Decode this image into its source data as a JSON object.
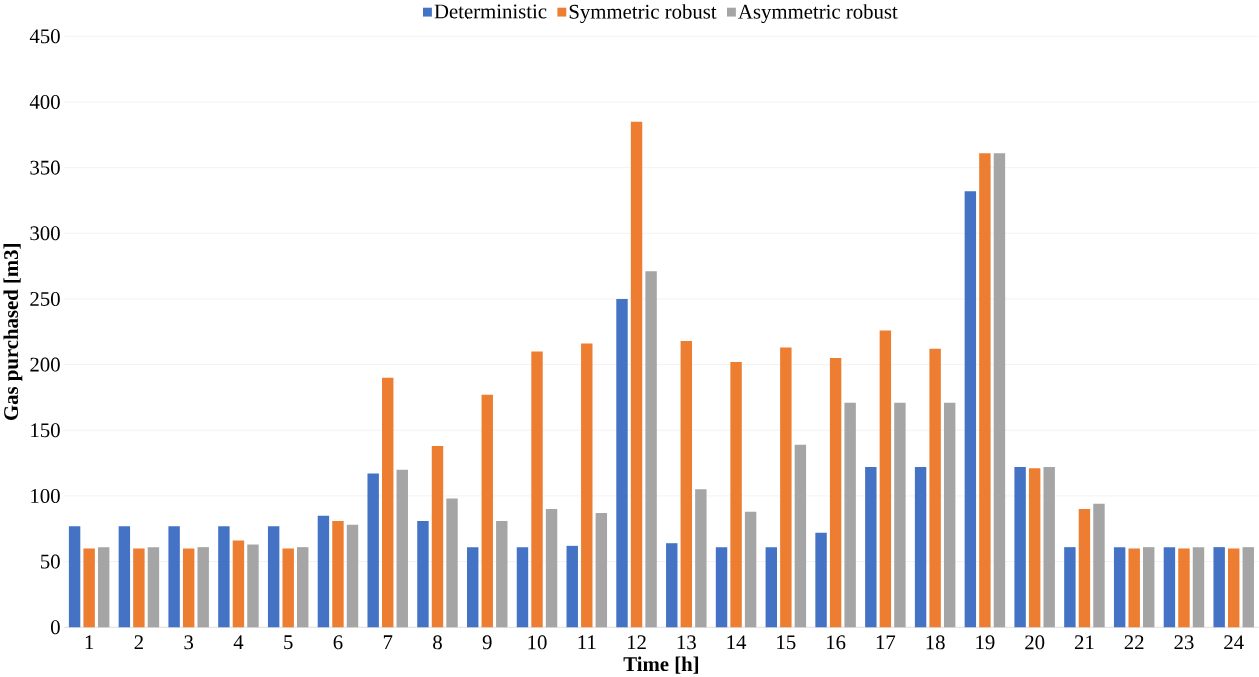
{
  "chart_data": {
    "type": "bar",
    "xlabel": "Time [h]",
    "ylabel": "Gas purchased [m3]",
    "categories": [
      "1",
      "2",
      "3",
      "4",
      "5",
      "6",
      "7",
      "8",
      "9",
      "10",
      "11",
      "12",
      "13",
      "14",
      "15",
      "16",
      "17",
      "18",
      "19",
      "20",
      "21",
      "22",
      "23",
      "24"
    ],
    "series": [
      {
        "name": "Deterministic",
        "color": "#4472c4",
        "values": [
          77,
          77,
          77,
          77,
          77,
          85,
          117,
          81,
          61,
          61,
          62,
          250,
          64,
          61,
          61,
          72,
          122,
          122,
          332,
          122,
          61,
          61,
          61,
          61
        ]
      },
      {
        "name": "Symmetric robust",
        "color": "#ed7d31",
        "values": [
          60,
          60,
          60,
          66,
          60,
          81,
          190,
          138,
          177,
          210,
          216,
          385,
          218,
          202,
          213,
          205,
          226,
          212,
          361,
          121,
          90,
          60,
          60,
          60
        ]
      },
      {
        "name": "Asymmetric robust",
        "color": "#a5a5a5",
        "values": [
          61,
          61,
          61,
          63,
          61,
          78,
          120,
          98,
          81,
          90,
          87,
          271,
          105,
          88,
          139,
          171,
          171,
          171,
          361,
          122,
          94,
          61,
          61,
          61
        ]
      }
    ],
    "ylim": [
      0,
      450
    ],
    "yticks": [
      0,
      50,
      100,
      150,
      200,
      250,
      300,
      350,
      400,
      450
    ],
    "grid": "y",
    "legend": "top"
  }
}
